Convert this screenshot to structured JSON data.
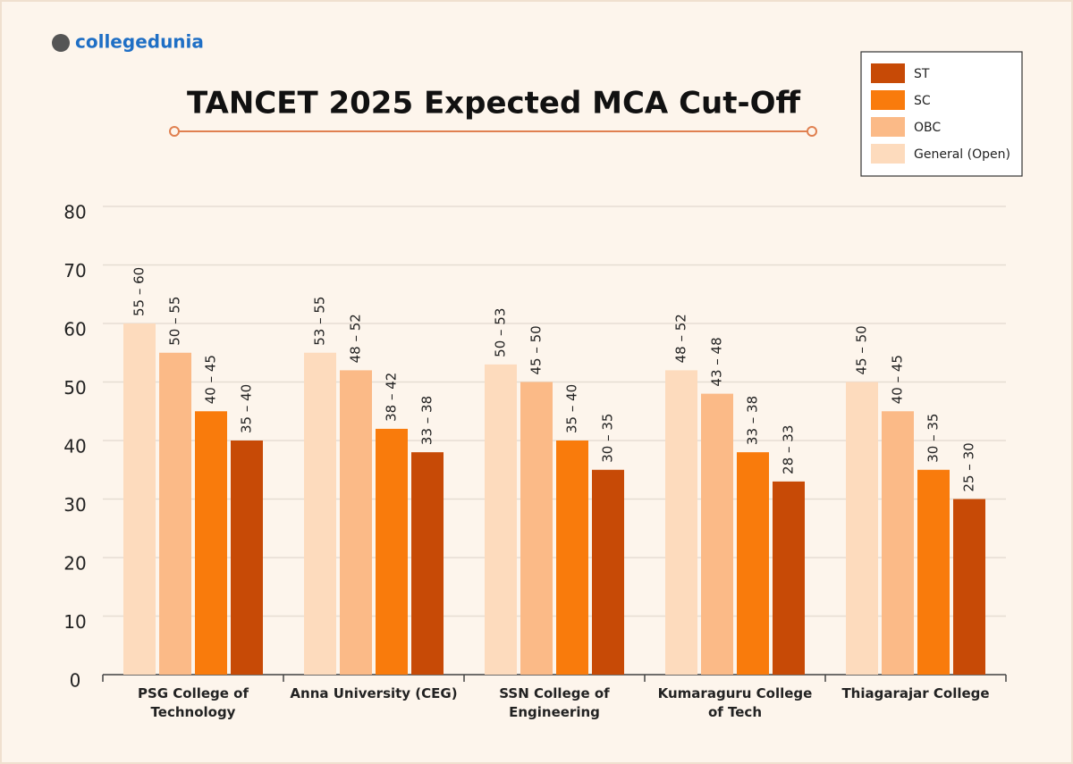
{
  "brand": "collegedunia",
  "chart_data": {
    "type": "bar",
    "title": "TANCET 2025 Expected MCA Cut-Off",
    "categories": [
      "PSG College of Technology",
      "Anna University (CEG)",
      "SSN College of Engineering",
      "Kumaraguru College of Tech",
      "Thiagarajar College"
    ],
    "series": [
      {
        "name": "General (Open)",
        "color": "#fddbbd",
        "values": [
          60,
          55,
          53,
          52,
          50
        ],
        "value_labels": [
          "55 – 60",
          "53 – 55",
          "50 – 53",
          "48 – 52",
          "45 – 50"
        ]
      },
      {
        "name": "OBC",
        "color": "#fbba87",
        "values": [
          55,
          52,
          50,
          48,
          45
        ],
        "value_labels": [
          "50 – 55",
          "48 – 52",
          "45 – 50",
          "43 – 48",
          "40 – 45"
        ]
      },
      {
        "name": "SC",
        "color": "#f97b0c",
        "values": [
          45,
          42,
          40,
          38,
          35
        ],
        "value_labels": [
          "40 – 45",
          "38 – 42",
          "35 – 40",
          "33 – 38",
          "30 – 35"
        ]
      },
      {
        "name": "ST",
        "color": "#c74a06",
        "values": [
          40,
          38,
          35,
          33,
          30
        ],
        "value_labels": [
          "35 – 40",
          "33 – 38",
          "30 – 35",
          "28 – 33",
          "25 – 30"
        ]
      }
    ],
    "ylim": [
      0,
      80
    ],
    "yticks": [
      0,
      10,
      20,
      30,
      40,
      50,
      60,
      70,
      80
    ],
    "grid": true,
    "legend": "top-right"
  }
}
